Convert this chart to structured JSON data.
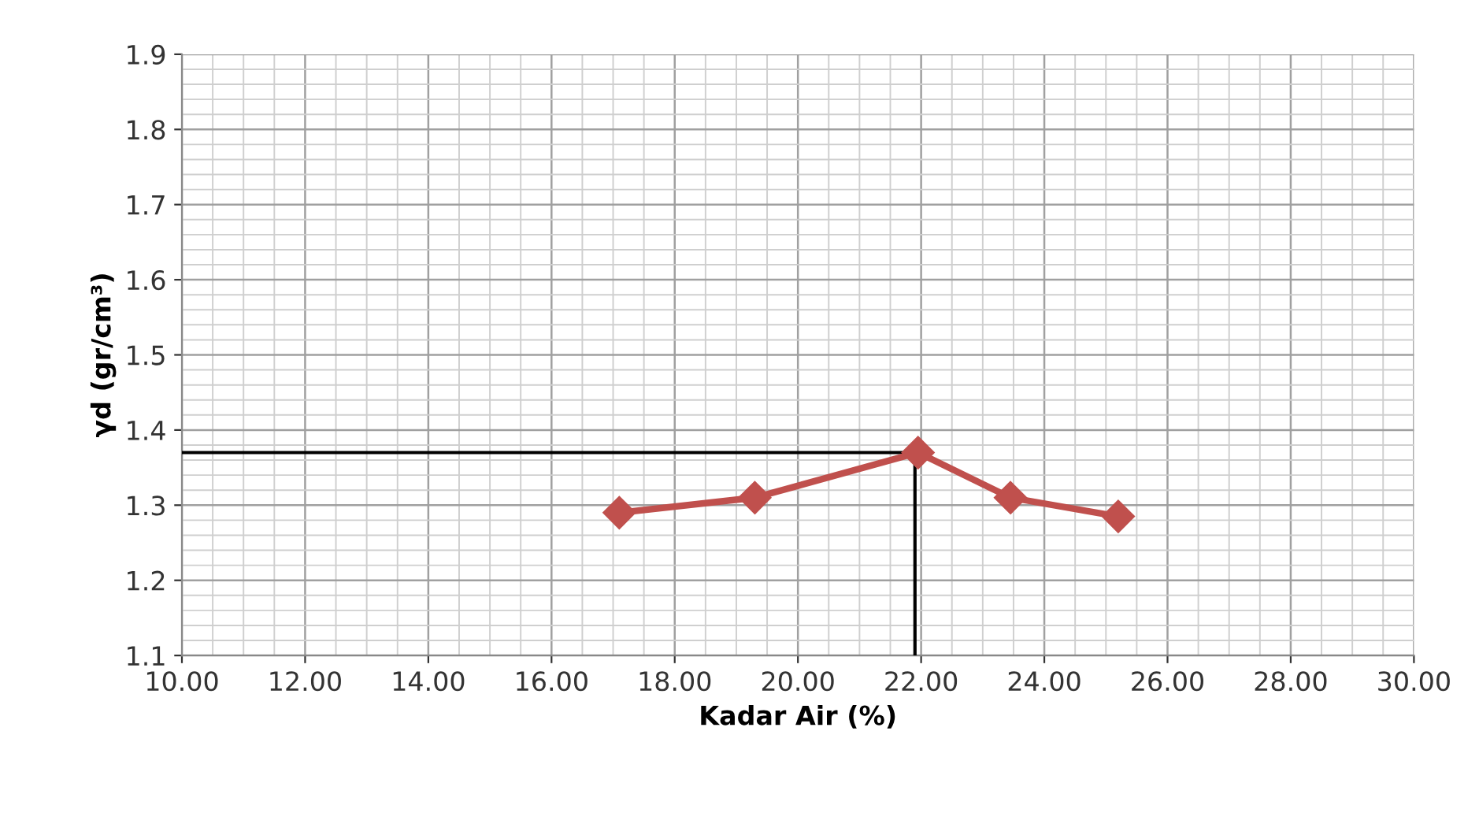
{
  "chart_data": {
    "type": "line",
    "xlabel": "Kadar Air (%)",
    "ylabel": "γd (gr/cm³)",
    "x": [
      17.1,
      19.3,
      21.95,
      23.45,
      25.2
    ],
    "series": [
      {
        "color": "#c0504d",
        "values": [
          1.29,
          1.31,
          1.37,
          1.31,
          1.285
        ]
      }
    ],
    "xlim": [
      10,
      30
    ],
    "ylim": [
      1.1,
      1.9
    ],
    "xticks": [
      {
        "value": 10,
        "label": "10.00"
      },
      {
        "value": 12,
        "label": "12.00"
      },
      {
        "value": 14,
        "label": "14.00"
      },
      {
        "value": 16,
        "label": "16.00"
      },
      {
        "value": 18,
        "label": "18.00"
      },
      {
        "value": 20,
        "label": "20.00"
      },
      {
        "value": 22,
        "label": "22.00"
      },
      {
        "value": 24,
        "label": "24.00"
      },
      {
        "value": 26,
        "label": "26.00"
      },
      {
        "value": 28,
        "label": "28.00"
      },
      {
        "value": 30,
        "label": "30.00"
      }
    ],
    "yticks": [
      1.1,
      1.2,
      1.3,
      1.4,
      1.5,
      1.6,
      1.7,
      1.8,
      1.9
    ],
    "ref_lines": [
      {
        "axis": "y",
        "value": 1.37,
        "color": "#000000"
      },
      {
        "axis": "x",
        "value": 21.9,
        "color": "#000000"
      }
    ],
    "grid": true,
    "marker": "diamond",
    "line_style": "solid"
  }
}
